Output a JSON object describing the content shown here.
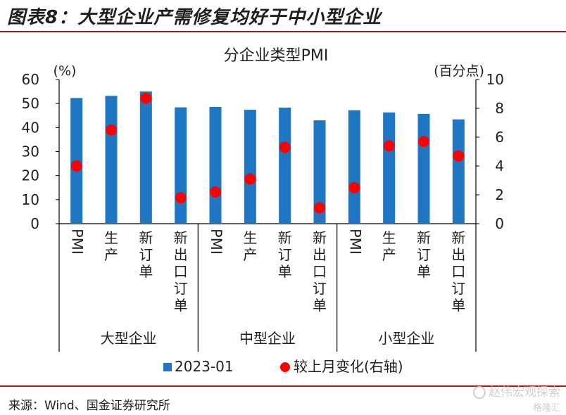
{
  "header": {
    "title": "图表8：大型企业产需修复均好于中小型企业"
  },
  "source": "来源：Wind、国金证券研究所",
  "watermark": {
    "primary": "赵伟宏观探索",
    "secondary": "格隆汇"
  },
  "colors": {
    "bar": "#1f77c3",
    "dot": "#ff0000",
    "rule": "#a61c1c"
  },
  "chart_data": {
    "type": "bar",
    "title": "分企业类型PMI",
    "ylabel_left": "(%)",
    "ylabel_right": "(百分点)",
    "ylim_left": [
      0,
      60
    ],
    "yticks_left": [
      "0",
      "10",
      "20",
      "30",
      "40",
      "50",
      "60"
    ],
    "ylim_right": [
      0,
      10
    ],
    "yticks_right": [
      "0",
      "2",
      "4",
      "6",
      "8",
      "10"
    ],
    "categories": [
      "PMI",
      "生产",
      "新订单",
      "新出口订单",
      "PMI",
      "生产",
      "新订单",
      "新出口订单",
      "PMI",
      "生产",
      "新订单",
      "新出口订单"
    ],
    "groups": [
      "大型企业",
      "中型企业",
      "小型企业"
    ],
    "series": [
      {
        "name": "2023-01",
        "type": "bar",
        "axis": "left",
        "values": [
          52.3,
          53.2,
          55.0,
          48.4,
          48.6,
          47.4,
          48.3,
          43.0,
          47.2,
          46.3,
          45.7,
          43.4
        ]
      },
      {
        "name": "较上月变化(右轴)",
        "type": "scatter",
        "axis": "right",
        "values": [
          4.0,
          6.5,
          8.7,
          1.8,
          2.2,
          3.1,
          5.3,
          1.1,
          2.5,
          5.4,
          5.7,
          4.7
        ]
      }
    ],
    "legend_position": "bottom",
    "grid": false
  }
}
